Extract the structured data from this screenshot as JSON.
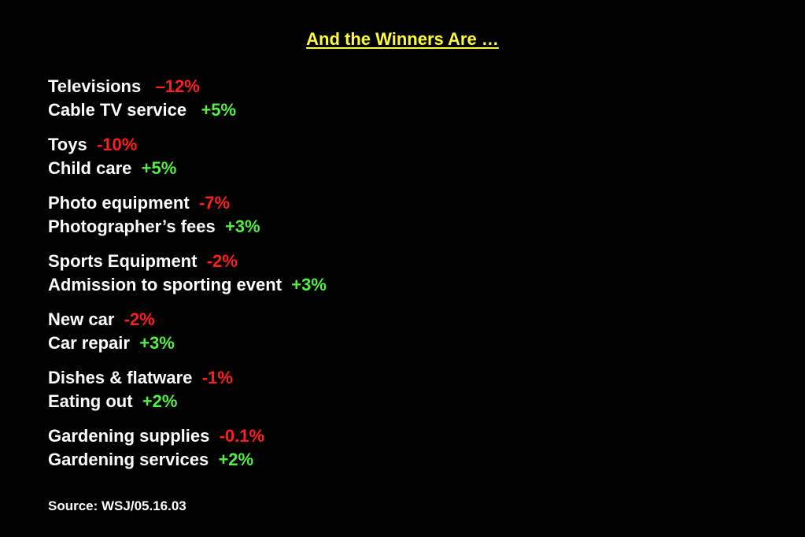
{
  "title": "And the Winners Are …",
  "colors": {
    "background": "#000000",
    "title": "#ffff33",
    "label": "#ffffff",
    "decrease": "#ff2020",
    "increase": "#55ee44"
  },
  "groups": [
    {
      "goods": {
        "label": "Televisions",
        "change": "–12%"
      },
      "service": {
        "label": "Cable TV service",
        "change": "+5%"
      }
    },
    {
      "goods": {
        "label": "Toys",
        "change": "-10%"
      },
      "service": {
        "label": "Child care",
        "change": "+5%"
      }
    },
    {
      "goods": {
        "label": "Photo equipment",
        "change": "-7%"
      },
      "service": {
        "label": "Photographer’s fees",
        "change": "+3%"
      }
    },
    {
      "goods": {
        "label": "Sports Equipment",
        "change": "-2%"
      },
      "service": {
        "label": "Admission to sporting event",
        "change": "+3%"
      }
    },
    {
      "goods": {
        "label": "New car",
        "change": "-2%"
      },
      "service": {
        "label": "Car repair",
        "change": "+3%"
      }
    },
    {
      "goods": {
        "label": "Dishes & flatware",
        "change": "-1%"
      },
      "service": {
        "label": "Eating out",
        "change": "+2%"
      }
    },
    {
      "goods": {
        "label": "Gardening supplies",
        "change": "-0.1%"
      },
      "service": {
        "label": "Gardening services",
        "change": "+2%"
      }
    }
  ],
  "source": "Source: WSJ/05.16.03"
}
